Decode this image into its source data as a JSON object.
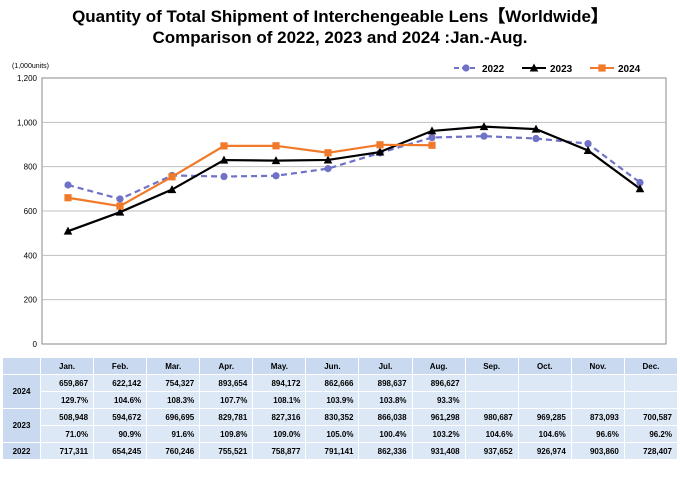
{
  "title_line1": "Quantity of Total Shipment of Interchengeable Lens【Worldwide】",
  "title_line2": "Comparison of 2022, 2023 and 2024 :Jan.-Aug.",
  "colors": {
    "s2022": "#6f72c6",
    "s2023": "#000000",
    "s2024": "#f07a2a",
    "grid": "#bfbfbf"
  },
  "chart_data": {
    "type": "line",
    "ylabel": "(1,000units)",
    "ylim": [
      0,
      1200
    ],
    "yticks": [
      "0",
      "200",
      "400",
      "600",
      "800",
      "1,000",
      "1,200"
    ],
    "grid": true,
    "legend_position": "top-right",
    "categories": [
      "Jan.",
      "Feb.",
      "Mar.",
      "Apr.",
      "May.",
      "Jun.",
      "Jul.",
      "Aug.",
      "Sep.",
      "Oct.",
      "Nov.",
      "Dec."
    ],
    "series": [
      {
        "name": "2022",
        "values": [
          717.311,
          654.245,
          760.246,
          755.521,
          758.877,
          791.141,
          862.336,
          931.408,
          937.652,
          926.974,
          903.86,
          728.407
        ]
      },
      {
        "name": "2023",
        "values": [
          508.948,
          594.672,
          696.695,
          829.781,
          827.316,
          830.352,
          866.038,
          961.298,
          980.687,
          969.285,
          873.093,
          700.587
        ]
      },
      {
        "name": "2024",
        "values": [
          659.867,
          622.142,
          754.327,
          893.654,
          894.172,
          862.666,
          898.637,
          896.627,
          null,
          null,
          null,
          null
        ]
      }
    ]
  },
  "table": {
    "months": [
      "Jan.",
      "Feb.",
      "Mar.",
      "Apr.",
      "May.",
      "Jun.",
      "Jul.",
      "Aug.",
      "Sep.",
      "Oct.",
      "Nov.",
      "Dec."
    ],
    "rows": [
      {
        "year": "2024",
        "values": [
          "659,867",
          "622,142",
          "754,327",
          "893,654",
          "894,172",
          "862,666",
          "898,637",
          "896,627",
          "",
          "",
          "",
          ""
        ],
        "pct": [
          "129.7%",
          "104.6%",
          "108.3%",
          "107.7%",
          "108.1%",
          "103.9%",
          "103.8%",
          "93.3%",
          "",
          "",
          "",
          ""
        ]
      },
      {
        "year": "2023",
        "values": [
          "508,948",
          "594,672",
          "696,695",
          "829,781",
          "827,316",
          "830,352",
          "866,038",
          "961,298",
          "980,687",
          "969,285",
          "873,093",
          "700,587"
        ],
        "pct": [
          "71.0%",
          "90.9%",
          "91.6%",
          "109.8%",
          "109.0%",
          "105.0%",
          "100.4%",
          "103.2%",
          "104.6%",
          "104.6%",
          "96.6%",
          "96.2%"
        ]
      },
      {
        "year": "2022",
        "values": [
          "717,311",
          "654,245",
          "760,246",
          "755,521",
          "758,877",
          "791,141",
          "862,336",
          "931,408",
          "937,652",
          "926,974",
          "903,860",
          "728,407"
        ]
      }
    ]
  }
}
